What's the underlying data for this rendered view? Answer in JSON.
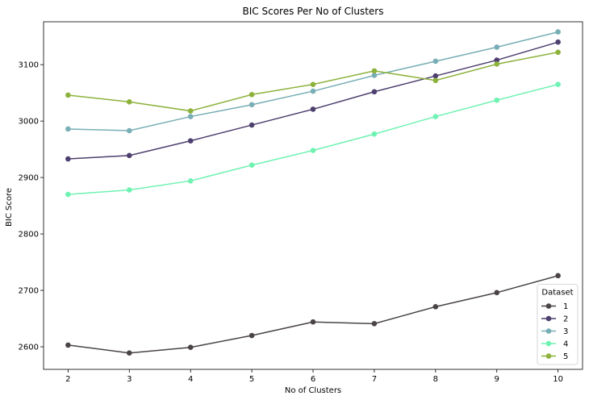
{
  "chart_data": {
    "type": "line",
    "title": "BIC Scores Per No of Clusters",
    "xlabel": "No of Clusters",
    "ylabel": "BIC Score",
    "x": [
      2,
      3,
      4,
      5,
      6,
      7,
      8,
      9,
      10
    ],
    "xlim": [
      1.6,
      10.4
    ],
    "ylim": [
      2560,
      3176
    ],
    "yticks": [
      2600,
      2700,
      2800,
      2900,
      3000,
      3100
    ],
    "grid": false,
    "legend": {
      "title": "Dataset",
      "placement": "bottom-right"
    },
    "series": [
      {
        "name": "1",
        "color": "#4a4446",
        "values": [
          2603,
          2589,
          2599,
          2620,
          2644,
          2641,
          2671,
          2696,
          2726
        ]
      },
      {
        "name": "2",
        "color": "#4d3f6e",
        "values": [
          2933,
          2939,
          2965,
          2993,
          3021,
          3052,
          3080,
          3108,
          3140
        ]
      },
      {
        "name": "3",
        "color": "#78aeb5",
        "values": [
          2986,
          2983,
          3008,
          3029,
          3053,
          3081,
          3106,
          3131,
          3158
        ]
      },
      {
        "name": "4",
        "color": "#6ff2b2",
        "values": [
          2870,
          2878,
          2894,
          2922,
          2948,
          2977,
          3008,
          3037,
          3065
        ]
      },
      {
        "name": "5",
        "color": "#8db23c",
        "values": [
          3046,
          3034,
          3018,
          3047,
          3065,
          3089,
          3072,
          3101,
          3122
        ]
      }
    ]
  }
}
